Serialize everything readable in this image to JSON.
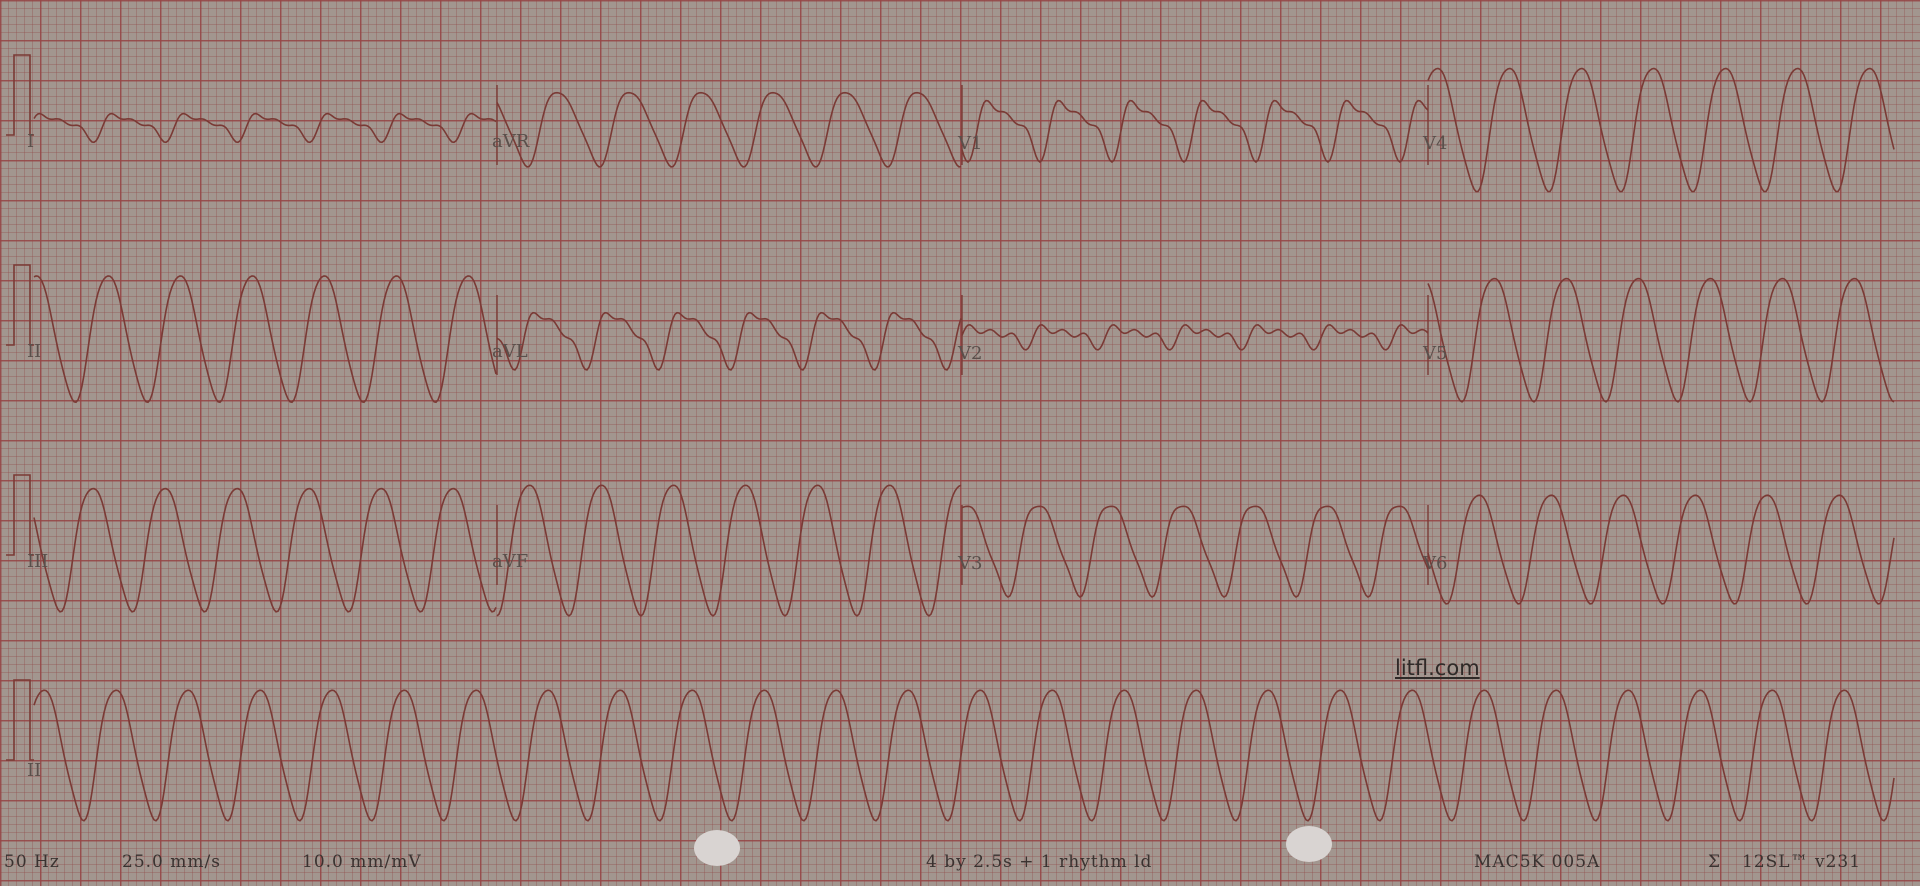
{
  "leads": {
    "I": "I",
    "II": "II",
    "III": "III",
    "aVR": "aVR",
    "aVL": "aVL",
    "aVF": "aVF",
    "V1": "V1",
    "V2": "V2",
    "V3": "V3",
    "V4": "V4",
    "V5": "V5",
    "V6": "V6",
    "rhythm": "II"
  },
  "footer": {
    "filter": "50 Hz",
    "speed": "25.0 mm/s",
    "gain": "10.0 mm/mV",
    "format": "4 by 2.5s + 1 rhythm ld",
    "device": "MAC5K 005A",
    "software": "12SL™ v231"
  },
  "watermark": "litfl.com",
  "colors": {
    "paper": "#a2968f",
    "grid": "#964646",
    "trace": "#7a3a35"
  }
}
